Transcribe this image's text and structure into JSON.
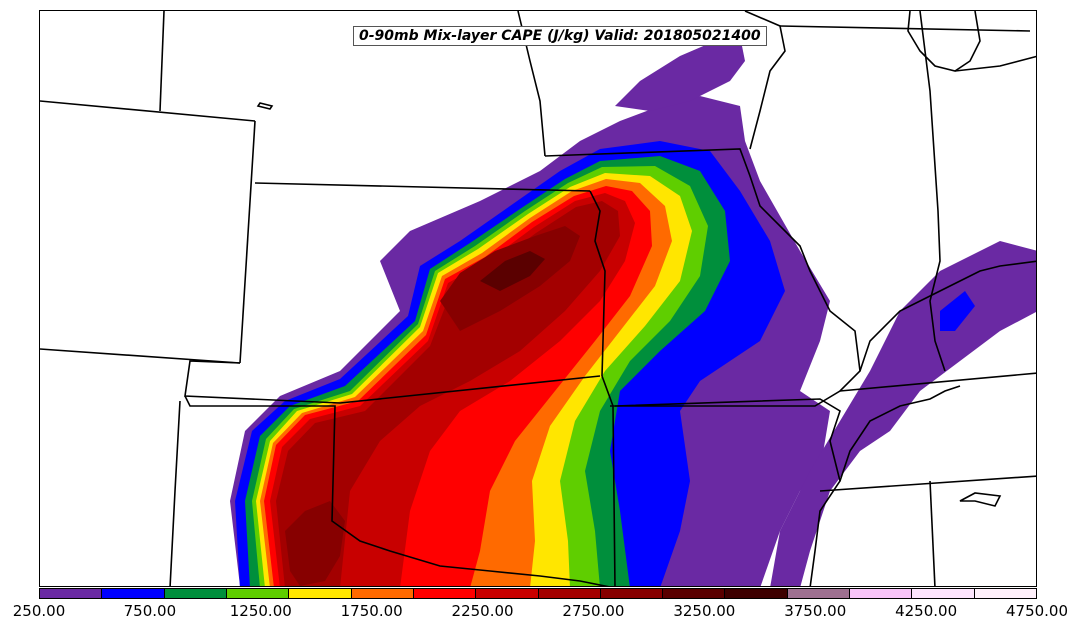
{
  "title": "0-90mb Mix-layer CAPE (J/kg) Valid: 201805021400",
  "colorbar": {
    "colors": [
      "#6a29a3",
      "#0000ff",
      "#008f3c",
      "#5fce00",
      "#ffe600",
      "#ff6a00",
      "#ff0000",
      "#c80000",
      "#a30000",
      "#870000",
      "#5a0000",
      "#3d0000",
      "#9e7090",
      "#f8c4f8",
      "#fde4fd",
      "#fff0fb"
    ],
    "tick_labels": [
      "250.00",
      "750.00",
      "1250.00",
      "1750.00",
      "2250.00",
      "2750.00",
      "3250.00",
      "3750.00",
      "4250.00",
      "4750.00"
    ]
  }
}
